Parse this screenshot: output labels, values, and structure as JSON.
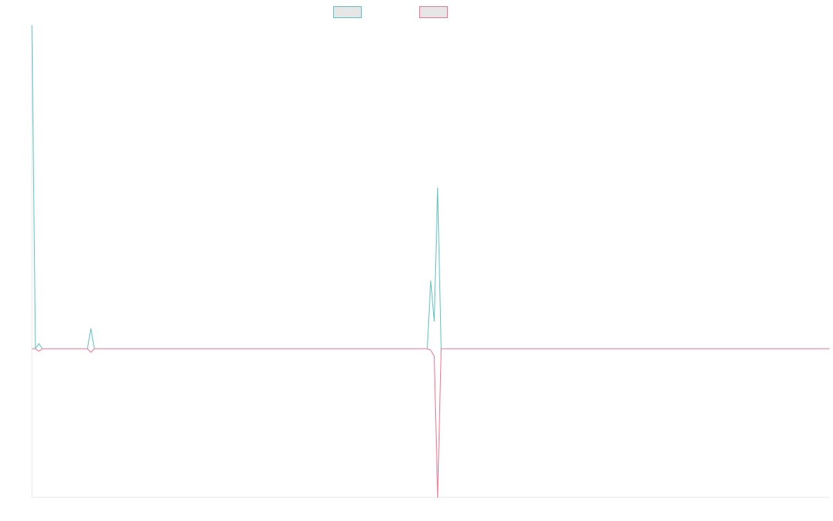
{
  "chart_data": {
    "type": "line",
    "title": "",
    "xlabel": "",
    "ylabel": "",
    "grid": false,
    "legend_position": "top-center",
    "x_count": 231,
    "ylim": [
      -1,
      1
    ],
    "series": [
      {
        "color": "#4bc0c0",
        "fill": "#e6e6e6",
        "values": [
          {
            "i": 0,
            "v": 1.0
          },
          {
            "i": 1,
            "v": 0.0
          },
          {
            "i": 2,
            "v": 0.016
          },
          {
            "i": 3,
            "v": 0.0
          },
          {
            "i": 16,
            "v": 0.0
          },
          {
            "i": 17,
            "v": 0.062
          },
          {
            "i": 18,
            "v": 0.0
          },
          {
            "i": 114,
            "v": 0.0
          },
          {
            "i": 115,
            "v": 0.21
          },
          {
            "i": 116,
            "v": 0.085
          },
          {
            "i": 117,
            "v": 0.497
          },
          {
            "i": 118,
            "v": 0.0
          },
          {
            "i": 230,
            "v": 0.0
          }
        ]
      },
      {
        "color": "#ff6384",
        "fill": "#e6e6e6",
        "values": [
          {
            "i": 0,
            "v": 0.0
          },
          {
            "i": 1,
            "v": 0.0
          },
          {
            "i": 2,
            "v": -0.016
          },
          {
            "i": 3,
            "v": 0.0
          },
          {
            "i": 16,
            "v": 0.0
          },
          {
            "i": 17,
            "v": -0.024
          },
          {
            "i": 18,
            "v": 0.0
          },
          {
            "i": 114,
            "v": 0.0
          },
          {
            "i": 115,
            "v": -0.01
          },
          {
            "i": 116,
            "v": -0.05
          },
          {
            "i": 117,
            "v": -1.0
          },
          {
            "i": 118,
            "v": 0.0
          },
          {
            "i": 230,
            "v": 0.0
          }
        ]
      }
    ]
  }
}
